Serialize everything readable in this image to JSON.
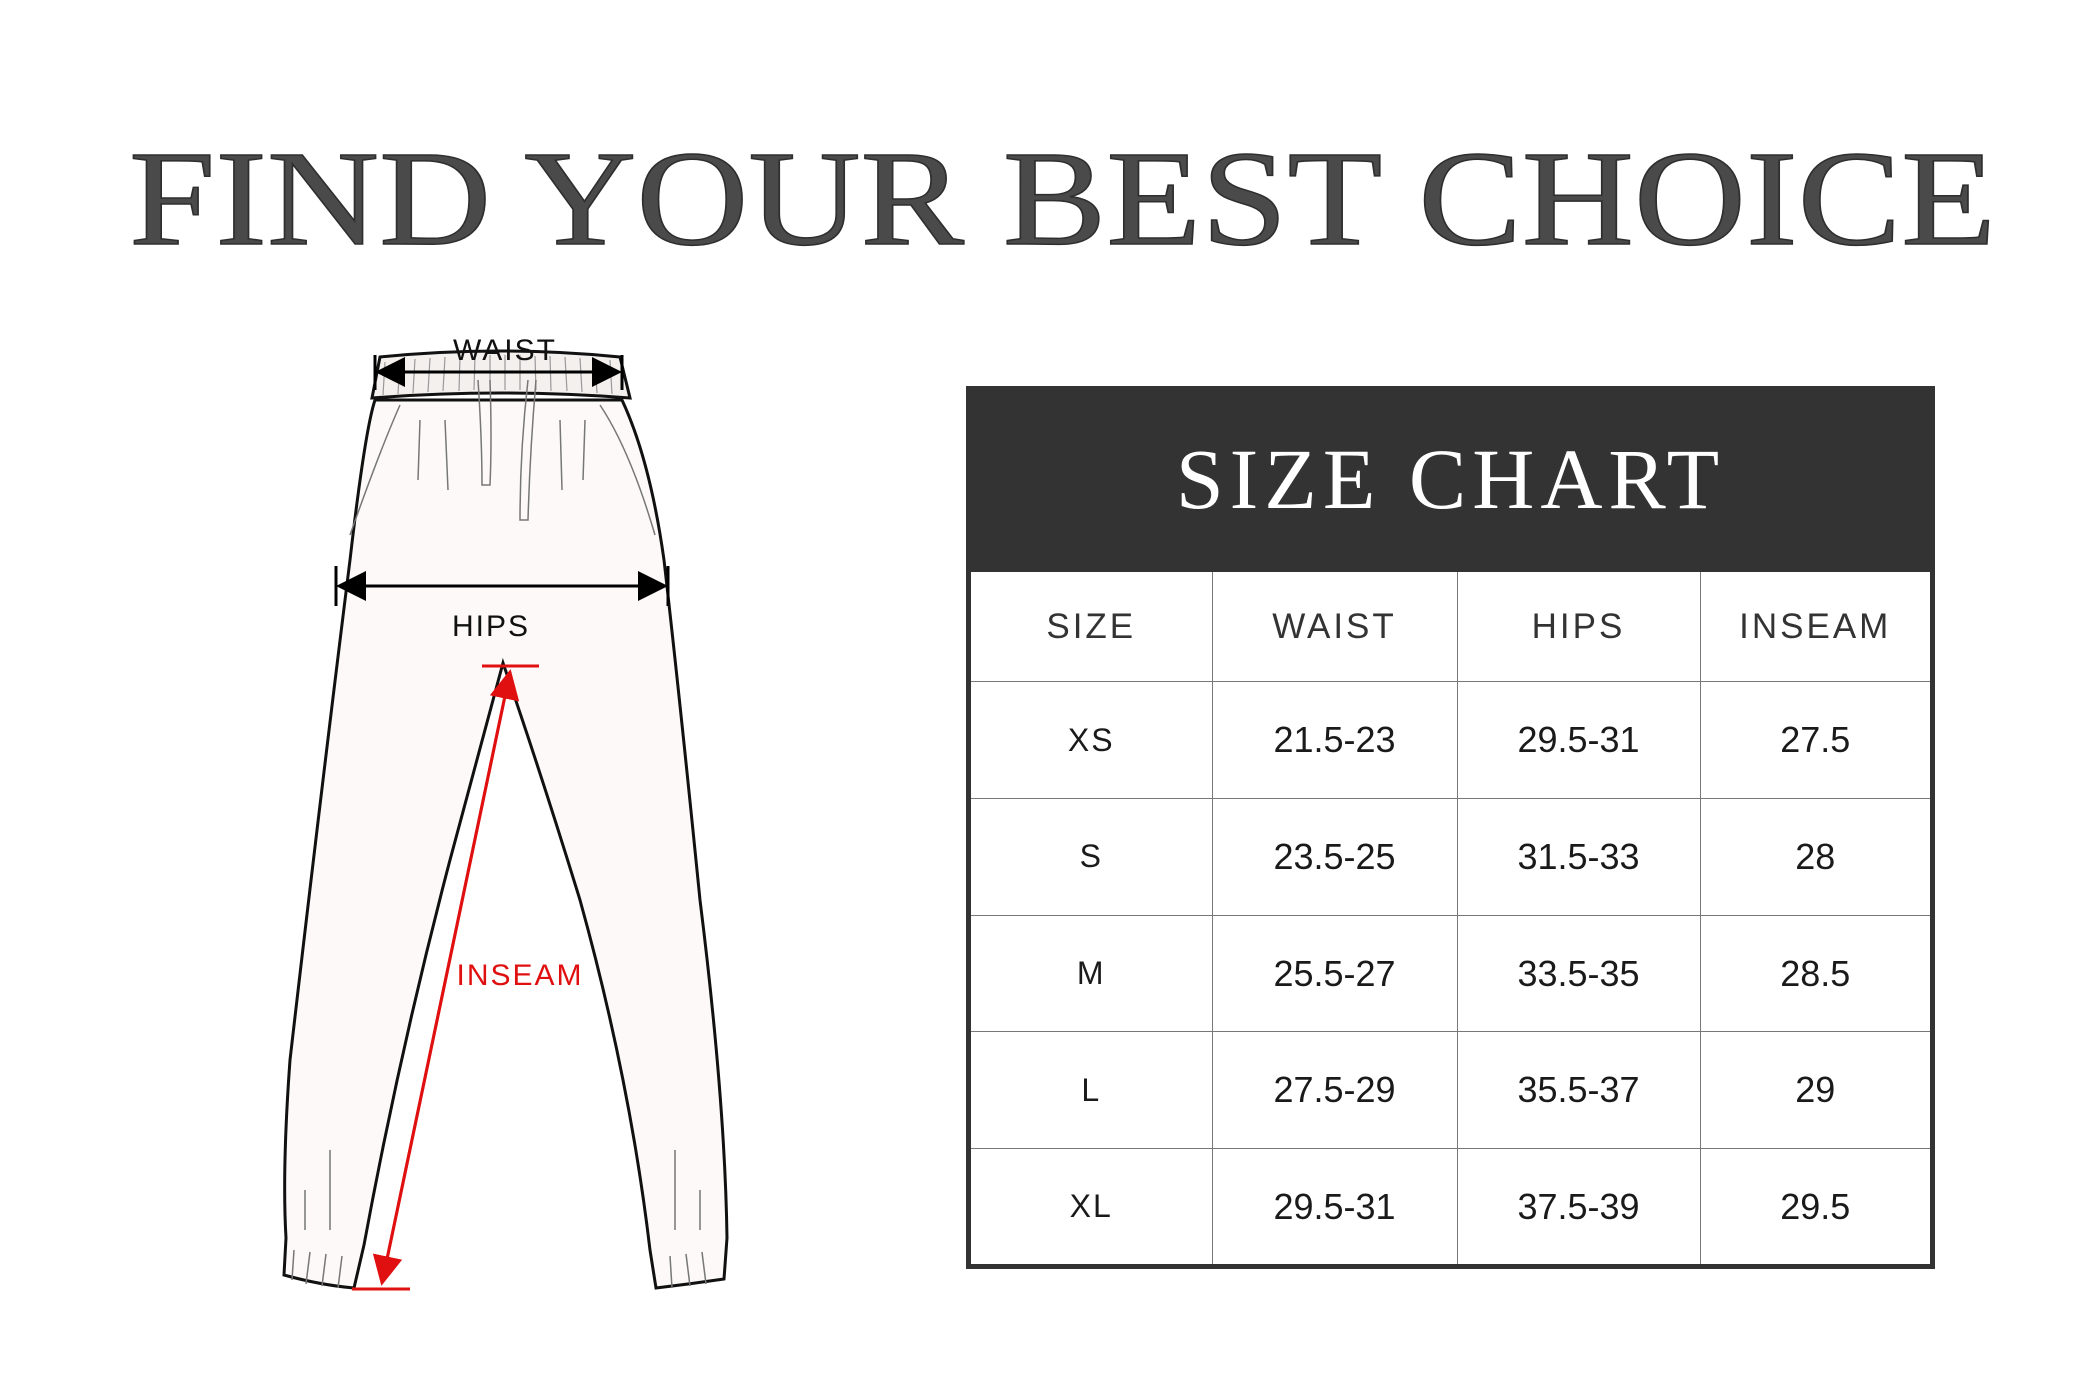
{
  "title": "FIND YOUR BEST CHOICE",
  "diagram": {
    "waist_label": "WAIST",
    "hips_label": "HIPS",
    "inseam_label": "INSEAM",
    "inseam_color": "#e01010"
  },
  "size_chart": {
    "title": "SIZE CHART",
    "header_color": "#333333",
    "columns": [
      "SIZE",
      "WAIST",
      "HIPS",
      "INSEAM"
    ],
    "rows": [
      [
        "XS",
        "21.5-23",
        "29.5-31",
        "27.5"
      ],
      [
        "S",
        "23.5-25",
        "31.5-33",
        "28"
      ],
      [
        "M",
        "25.5-27",
        "33.5-35",
        "28.5"
      ],
      [
        "L",
        "27.5-29",
        "35.5-37",
        "29"
      ],
      [
        "XL",
        "29.5-31",
        "37.5-39",
        "29.5"
      ]
    ]
  }
}
